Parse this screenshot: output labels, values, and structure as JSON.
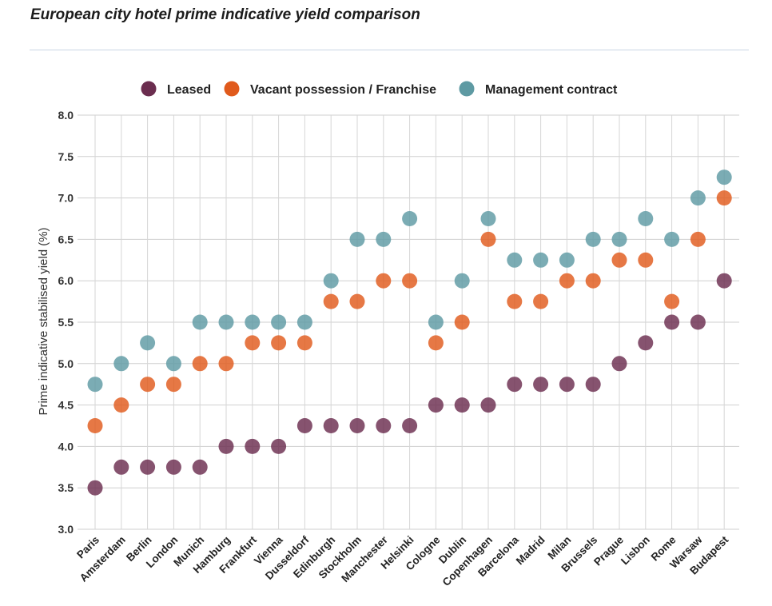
{
  "title": "European city hotel prime indicative yield comparison",
  "chart_data": {
    "type": "scatter",
    "title": "European city hotel prime indicative yield comparison",
    "xlabel": "",
    "ylabel": "Prime indicative stabilised yield (%)",
    "ylim": [
      3.0,
      8.0
    ],
    "yticks": [
      "3.0",
      "3.5",
      "4.0",
      "4.5",
      "5.0",
      "5.5",
      "6.0",
      "6.5",
      "7.0",
      "7.5",
      "8.0"
    ],
    "grid": true,
    "legend_position": "top",
    "categories": [
      "Paris",
      "Amsterdam",
      "Berlin",
      "London",
      "Munich",
      "Hamburg",
      "Frankfurt",
      "Vienna",
      "Dusseldorf",
      "Edinburgh",
      "Stockholm",
      "Manchester",
      "Helsinki",
      "Cologne",
      "Dublin",
      "Copenhagen",
      "Barcelona",
      "Madrid",
      "Milan",
      "Brussels",
      "Prague",
      "Lisbon",
      "Rome",
      "Warsaw",
      "Budapest"
    ],
    "series": [
      {
        "name": "Leased",
        "color": "#6b2d4f",
        "values": [
          3.5,
          3.75,
          3.75,
          3.75,
          3.75,
          4.0,
          4.0,
          4.0,
          4.25,
          4.25,
          4.25,
          4.25,
          4.25,
          4.5,
          4.5,
          4.5,
          4.75,
          4.75,
          4.75,
          4.75,
          5.0,
          5.25,
          5.5,
          5.5,
          6.0
        ]
      },
      {
        "name": "Vacant possession / Franchise",
        "color": "#e05a1c",
        "values": [
          4.25,
          4.5,
          4.75,
          4.75,
          5.0,
          5.0,
          5.25,
          5.25,
          5.25,
          5.75,
          5.75,
          6.0,
          6.0,
          5.25,
          5.5,
          6.5,
          5.75,
          5.75,
          6.0,
          6.0,
          6.25,
          6.25,
          5.75,
          6.5,
          7.0
        ]
      },
      {
        "name": "Management contract",
        "color": "#5e9aa3",
        "values": [
          4.75,
          5.0,
          5.25,
          5.0,
          5.5,
          5.5,
          5.5,
          5.5,
          5.5,
          6.0,
          6.5,
          6.5,
          6.75,
          5.5,
          6.0,
          6.75,
          6.25,
          6.25,
          6.25,
          6.5,
          6.5,
          6.75,
          6.5,
          7.0,
          7.25
        ]
      }
    ]
  }
}
